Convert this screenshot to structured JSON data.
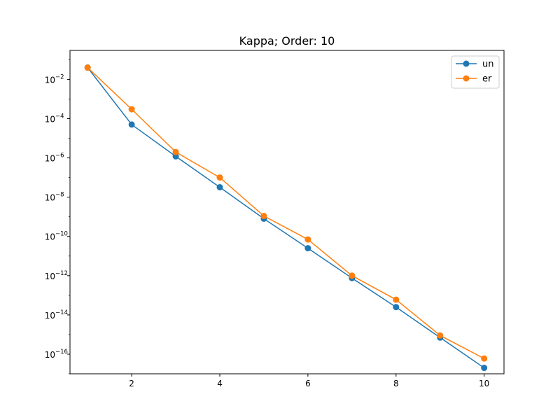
{
  "chart_data": {
    "type": "line",
    "title": "Kappa; Order: 10",
    "xlabel": "",
    "ylabel": "",
    "xscale": "linear",
    "yscale": "log",
    "xlim": [
      0.6,
      10.45
    ],
    "ylim": [
      1e-17,
      0.3
    ],
    "xticks": [
      2,
      4,
      6,
      8,
      10
    ],
    "xtick_labels": [
      "2",
      "4",
      "6",
      "8",
      "10"
    ],
    "yticks": [
      1e-16,
      1e-14,
      1e-12,
      1e-10,
      1e-08,
      1e-06,
      0.0001,
      0.01
    ],
    "ytick_labels": [
      {
        "base": "10",
        "exp": "−16"
      },
      {
        "base": "10",
        "exp": "−14"
      },
      {
        "base": "10",
        "exp": "−12"
      },
      {
        "base": "10",
        "exp": "−10"
      },
      {
        "base": "10",
        "exp": "−8"
      },
      {
        "base": "10",
        "exp": "−6"
      },
      {
        "base": "10",
        "exp": "−4"
      },
      {
        "base": "10",
        "exp": "−2"
      }
    ],
    "grid": false,
    "legend": "top-right",
    "x": [
      1,
      2,
      3,
      4,
      5,
      6,
      7,
      8,
      9,
      10
    ],
    "series": [
      {
        "name": "un",
        "color": "#1f77b4",
        "values": [
          0.04,
          5e-05,
          1.2e-06,
          3.2e-08,
          8e-10,
          2.5e-11,
          7.5e-13,
          2.5e-14,
          7e-16,
          2e-17
        ]
      },
      {
        "name": "er",
        "color": "#ff7f0e",
        "values": [
          0.04,
          0.0003,
          2e-06,
          1e-07,
          1.1e-09,
          7e-11,
          1e-12,
          6e-14,
          9e-16,
          6e-17
        ]
      }
    ]
  }
}
